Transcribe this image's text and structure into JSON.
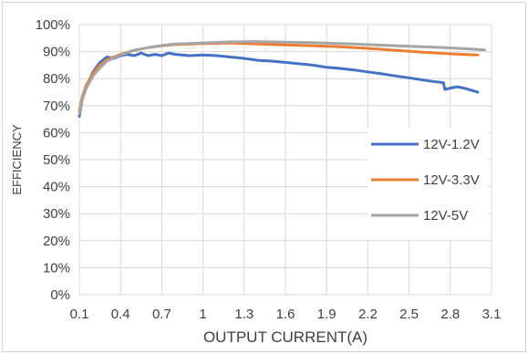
{
  "chart_data": {
    "type": "line",
    "title": "",
    "xlabel": "OUTPUT CURRENT(A)",
    "ylabel": "EFFICIENCY",
    "xlim": [
      0.1,
      3.1
    ],
    "ylim": [
      0,
      100
    ],
    "x_ticks": [
      "0.1",
      "0.4",
      "0.7",
      "1",
      "1.3",
      "1.6",
      "1.9",
      "2.2",
      "2.5",
      "2.8",
      "3.1"
    ],
    "y_ticks": [
      "0%",
      "10%",
      "20%",
      "30%",
      "40%",
      "50%",
      "60%",
      "70%",
      "80%",
      "90%",
      "100%"
    ],
    "grid": true,
    "legend_position": "right",
    "series": [
      {
        "name": "12V-1.2V",
        "color": "#4472C4",
        "points": [
          [
            0.1,
            66
          ],
          [
            0.12,
            72
          ],
          [
            0.15,
            77
          ],
          [
            0.2,
            82.5
          ],
          [
            0.25,
            86
          ],
          [
            0.3,
            88
          ],
          [
            0.35,
            87.5
          ],
          [
            0.4,
            88.5
          ],
          [
            0.45,
            89
          ],
          [
            0.5,
            88.5
          ],
          [
            0.55,
            89.5
          ],
          [
            0.6,
            88.5
          ],
          [
            0.65,
            89
          ],
          [
            0.7,
            88.5
          ],
          [
            0.75,
            89.5
          ],
          [
            0.8,
            89
          ],
          [
            0.9,
            88.5
          ],
          [
            1.0,
            88.8
          ],
          [
            1.1,
            88.5
          ],
          [
            1.2,
            88
          ],
          [
            1.3,
            87.5
          ],
          [
            1.4,
            86.8
          ],
          [
            1.5,
            86.5
          ],
          [
            1.6,
            86
          ],
          [
            1.7,
            85.5
          ],
          [
            1.8,
            85
          ],
          [
            1.9,
            84.2
          ],
          [
            2.0,
            83.8
          ],
          [
            2.1,
            83.2
          ],
          [
            2.2,
            82.5
          ],
          [
            2.3,
            81.8
          ],
          [
            2.4,
            81
          ],
          [
            2.5,
            80.3
          ],
          [
            2.6,
            79.5
          ],
          [
            2.7,
            78.8
          ],
          [
            2.75,
            78.5
          ],
          [
            2.76,
            76
          ],
          [
            2.8,
            76.5
          ],
          [
            2.85,
            77
          ],
          [
            2.9,
            76.5
          ],
          [
            3.0,
            75
          ]
        ]
      },
      {
        "name": "12V-3.3V",
        "color": "#ED7D31",
        "points": [
          [
            0.1,
            68
          ],
          [
            0.12,
            73
          ],
          [
            0.15,
            77.5
          ],
          [
            0.2,
            82
          ],
          [
            0.25,
            85
          ],
          [
            0.3,
            87
          ],
          [
            0.4,
            89
          ],
          [
            0.5,
            90.5
          ],
          [
            0.6,
            91.5
          ],
          [
            0.7,
            92.2
          ],
          [
            0.8,
            92.6
          ],
          [
            1.0,
            93
          ],
          [
            1.2,
            93.2
          ],
          [
            1.4,
            92.8
          ],
          [
            1.6,
            92.5
          ],
          [
            1.8,
            92.2
          ],
          [
            2.0,
            91.8
          ],
          [
            2.2,
            91.2
          ],
          [
            2.4,
            90.5
          ],
          [
            2.6,
            89.8
          ],
          [
            2.8,
            89.2
          ],
          [
            3.0,
            88.8
          ]
        ]
      },
      {
        "name": "12V-5V",
        "color": "#A5A5A5",
        "points": [
          [
            0.1,
            67
          ],
          [
            0.12,
            72
          ],
          [
            0.15,
            76.5
          ],
          [
            0.2,
            81
          ],
          [
            0.25,
            84
          ],
          [
            0.3,
            86.5
          ],
          [
            0.4,
            88.8
          ],
          [
            0.5,
            90.5
          ],
          [
            0.6,
            91.5
          ],
          [
            0.7,
            92.3
          ],
          [
            0.8,
            92.8
          ],
          [
            1.0,
            93.2
          ],
          [
            1.2,
            93.6
          ],
          [
            1.4,
            93.7
          ],
          [
            1.6,
            93.5
          ],
          [
            1.8,
            93.3
          ],
          [
            2.0,
            93
          ],
          [
            2.2,
            92.6
          ],
          [
            2.4,
            92.2
          ],
          [
            2.6,
            91.8
          ],
          [
            2.8,
            91.4
          ],
          [
            3.0,
            90.8
          ],
          [
            3.05,
            90.6
          ]
        ]
      }
    ]
  }
}
